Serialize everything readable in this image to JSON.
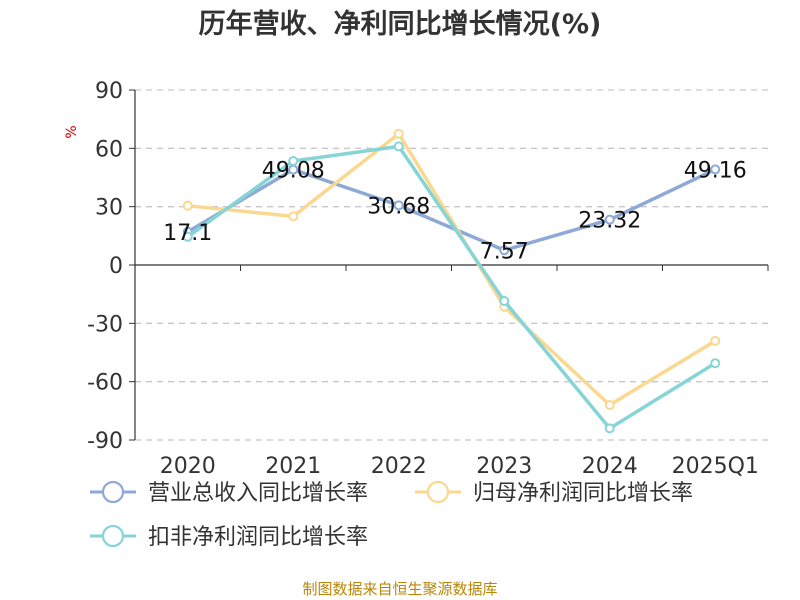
{
  "source": "制图数据来自恒生聚源数据库",
  "chart_data": {
    "type": "line",
    "title": "历年营收、净利同比增长情况(%)",
    "ylabel": "%",
    "xlabel": "",
    "categories": [
      "2020",
      "2021",
      "2022",
      "2023",
      "2024",
      "2025Q1"
    ],
    "ylim": [
      -90,
      90
    ],
    "yticks": [
      90,
      60,
      30,
      0,
      -30,
      -60,
      -90
    ],
    "grid": true,
    "legend_position": "bottom",
    "series": [
      {
        "name": "营业总收入同比增长率",
        "color": "#8fa9d6",
        "values": [
          17.1,
          49.08,
          30.68,
          7.57,
          23.32,
          49.16
        ],
        "show_labels": true
      },
      {
        "name": "归母净利润同比增长率",
        "color": "#fbd88f",
        "values": [
          30.5,
          25.0,
          67.5,
          -21.5,
          -72.0,
          -39.0
        ],
        "show_labels": false
      },
      {
        "name": "扣非净利润同比增长率",
        "color": "#86d4d6",
        "values": [
          14.5,
          53.5,
          61.0,
          -18.5,
          -84.0,
          -50.5
        ],
        "show_labels": false
      }
    ]
  }
}
